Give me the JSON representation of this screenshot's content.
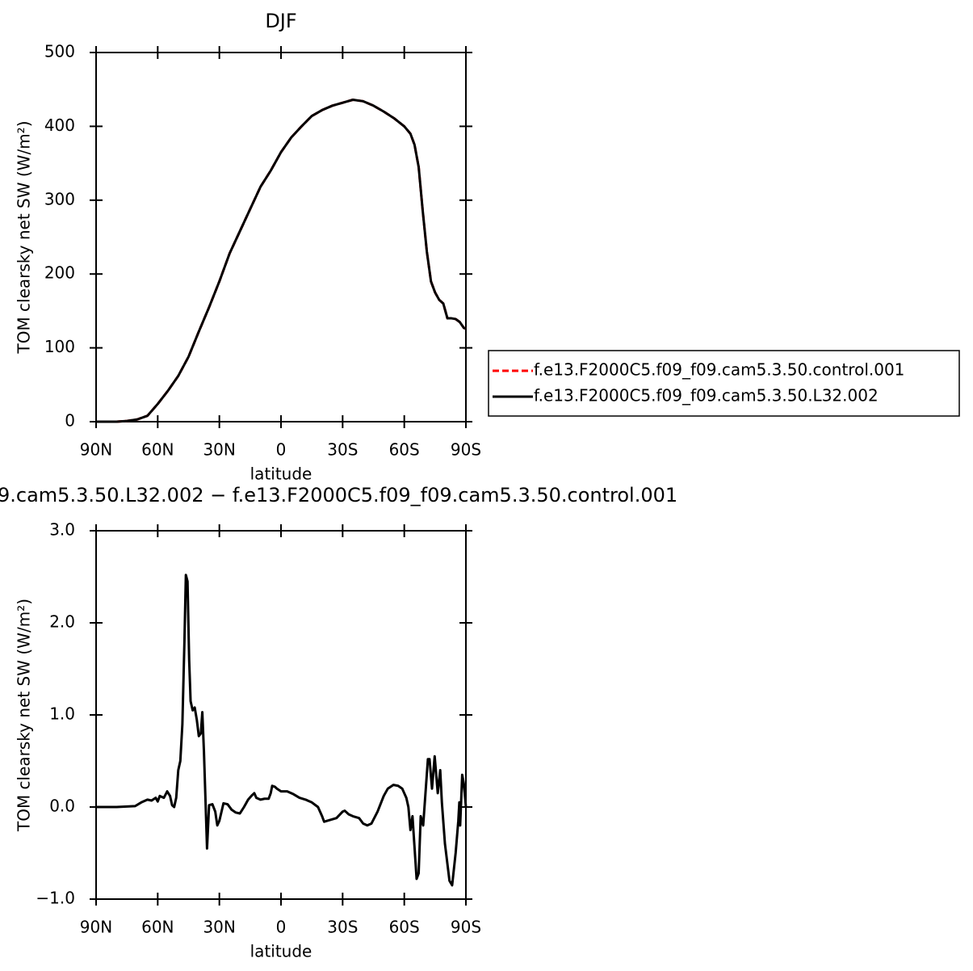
{
  "chart_data": [
    {
      "type": "line",
      "title": "DJF",
      "xlabel": "latitude",
      "ylabel": "TOM clearsky net SW (W/m²)",
      "x": [
        90,
        80,
        75,
        70,
        65,
        60,
        55,
        50,
        45,
        40,
        35,
        30,
        25,
        20,
        15,
        10,
        5,
        0,
        -5,
        -10,
        -15,
        -20,
        -25,
        -30,
        -35,
        -40,
        -45,
        -50,
        -55,
        -60,
        -63,
        -65,
        -67,
        -69,
        -71,
        -73,
        -75,
        -77,
        -79,
        -81,
        -83,
        -85,
        -87,
        -89,
        -90
      ],
      "series": [
        {
          "name": "f.e13.F2000C5.f09_f09.cam5.3.50.control.001",
          "color": "#ff0000",
          "line_style": "dashed",
          "values": [
            0,
            0,
            1,
            3,
            8,
            24,
            42,
            62,
            88,
            122,
            155,
            190,
            228,
            258,
            288,
            318,
            340,
            365,
            385,
            400,
            414,
            422,
            428,
            432,
            436,
            434,
            428,
            420,
            411,
            400,
            390,
            375,
            345,
            285,
            230,
            190,
            175,
            165,
            160,
            140,
            140,
            139,
            135,
            127,
            126
          ]
        },
        {
          "name": "f.e13.F2000C5.f09_f09.cam5.3.50.L32.002",
          "color": "#000000",
          "line_style": "solid",
          "values": [
            0,
            0,
            1,
            3,
            8,
            24,
            42,
            62,
            88,
            122,
            155,
            190,
            228,
            258,
            288,
            318,
            340,
            365,
            385,
            400,
            414,
            422,
            428,
            432,
            436,
            434,
            428,
            420,
            411,
            400,
            390,
            375,
            345,
            285,
            230,
            190,
            175,
            165,
            160,
            140,
            140,
            139,
            135,
            127,
            126
          ]
        }
      ],
      "xlim": [
        90,
        -90
      ],
      "xticks": [
        {
          "value": 90,
          "label": "90N"
        },
        {
          "value": 60,
          "label": "60N"
        },
        {
          "value": 30,
          "label": "30N"
        },
        0,
        {
          "value": -30,
          "label": "30S"
        },
        {
          "value": -60,
          "label": "60S"
        },
        {
          "value": -90,
          "label": "90S"
        }
      ],
      "ylim": [
        0,
        500
      ],
      "yticks": [
        0,
        100,
        200,
        300,
        400,
        500
      ],
      "legend": "right"
    },
    {
      "type": "line",
      "title": "9.cam5.3.50.L32.002 − f.e13.F2000C5.f09_f09.cam5.3.50.control.001",
      "xlabel": "latitude",
      "ylabel": "TOM clearsky net SW (W/m²)",
      "x": [
        90,
        80,
        71,
        68,
        65,
        63,
        61,
        60,
        59,
        57,
        55.4,
        54,
        53,
        52,
        51,
        50,
        49,
        48,
        47,
        46.3,
        45.5,
        44.7,
        44,
        43,
        42,
        41,
        40,
        39,
        38.3,
        37.5,
        36,
        35,
        33.4,
        32,
        31,
        30,
        28,
        26,
        24,
        22,
        20,
        18,
        16,
        14,
        13,
        12,
        10,
        8,
        6,
        5,
        4.3,
        3,
        2,
        0,
        -3,
        -6,
        -9,
        -12,
        -15,
        -18,
        -20,
        -21,
        -24,
        -27,
        -30,
        -31,
        -33,
        -35,
        -38,
        -40,
        -42,
        -44,
        -47,
        -50,
        -52,
        -54.7,
        -57,
        -59,
        -61,
        -62,
        -63,
        -64,
        -66,
        -67,
        -68,
        -69.2,
        -71.5,
        -72.3,
        -73.5,
        -74.8,
        -76.3,
        -77.5,
        -78.3,
        -79.8,
        -82,
        -83.3,
        -85,
        -86.3,
        -86.8,
        -87.2,
        -88.2,
        -89,
        -90
      ],
      "series": [
        {
          "color": "#000000",
          "line_style": "solid",
          "values": [
            0,
            0,
            0.01,
            0.05,
            0.08,
            0.07,
            0.1,
            0.06,
            0.12,
            0.1,
            0.17,
            0.12,
            0.02,
            0,
            0.1,
            0.4,
            0.5,
            0.9,
            1.8,
            2.52,
            2.45,
            1.6,
            1.15,
            1.05,
            1.08,
            0.95,
            0.77,
            0.8,
            1.03,
            0.6,
            -0.45,
            0.02,
            0.03,
            -0.05,
            -0.2,
            -0.15,
            0.04,
            0.03,
            -0.03,
            -0.06,
            -0.07,
            0,
            0.08,
            0.13,
            0.15,
            0.1,
            0.08,
            0.09,
            0.09,
            0.15,
            0.23,
            0.22,
            0.2,
            0.17,
            0.17,
            0.14,
            0.1,
            0.08,
            0.05,
            0,
            -0.1,
            -0.16,
            -0.14,
            -0.12,
            -0.05,
            -0.04,
            -0.08,
            -0.1,
            -0.12,
            -0.18,
            -0.2,
            -0.18,
            -0.05,
            0.12,
            0.2,
            0.24,
            0.23,
            0.2,
            0.1,
            0,
            -0.25,
            -0.1,
            -0.78,
            -0.72,
            -0.1,
            -0.2,
            0.52,
            0.52,
            0.2,
            0.55,
            0.15,
            0.4,
            0.05,
            -0.4,
            -0.8,
            -0.85,
            -0.5,
            -0.15,
            0.05,
            -0.2,
            0.35,
            0.25,
            0
          ]
        }
      ],
      "xlim": [
        90,
        -90
      ],
      "xticks": [
        {
          "value": 90,
          "label": "90N"
        },
        {
          "value": 60,
          "label": "60N"
        },
        {
          "value": 30,
          "label": "30N"
        },
        0,
        {
          "value": -30,
          "label": "30S"
        },
        {
          "value": -60,
          "label": "60S"
        },
        {
          "value": -90,
          "label": "90S"
        }
      ],
      "ylim": [
        -1,
        3
      ],
      "yticks": [
        {
          "value": -1,
          "label": "−1.0"
        },
        {
          "value": 0,
          "label": "0.0"
        },
        {
          "value": 1,
          "label": "1.0"
        },
        {
          "value": 2,
          "label": "2.0"
        },
        {
          "value": 3,
          "label": "3.0"
        }
      ]
    }
  ]
}
